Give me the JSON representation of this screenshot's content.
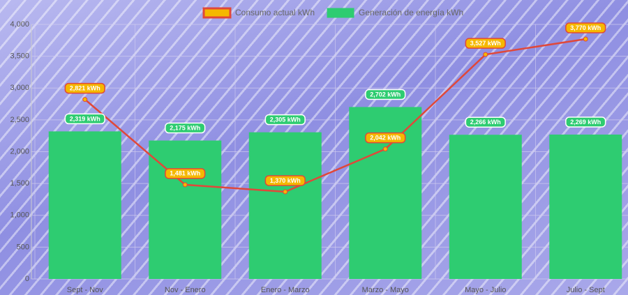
{
  "chart_data": {
    "type": "combo",
    "categories": [
      "Sept - Nov",
      "Nov - Enero",
      "Enero - Marzo",
      "Marzo - Mayo",
      "Mayo - Julio",
      "Julio - Sept"
    ],
    "series": [
      {
        "name": "Consumo actual kWh",
        "type": "line",
        "color": "#e0483a",
        "marker_color": "#f5b800",
        "values": [
          2821,
          1481,
          1370,
          2042,
          3527,
          3770
        ],
        "value_labels": [
          "2,821 kWh",
          "1,481 kWh",
          "1,370 kWh",
          "2,042 kWh",
          "3,527 kWh",
          "3,770 kWh"
        ]
      },
      {
        "name": "Generación de energía kWh",
        "type": "bar",
        "color": "#2ecc71",
        "values": [
          2319,
          2175,
          2305,
          2702,
          2266,
          2269
        ],
        "value_labels": [
          "2,319 kWh",
          "2,175 kWh",
          "2,305 kWh",
          "2,702 kWh",
          "2,266 kWh",
          "2,269 kWh"
        ]
      }
    ],
    "ylim": [
      0,
      4000
    ],
    "yticks": [
      0,
      500,
      {
        "value": 1000,
        "label": "1,000"
      },
      {
        "value": 1500,
        "label": "1,500"
      },
      {
        "value": 2000,
        "label": "2,000"
      },
      {
        "value": 2500,
        "label": "2,500"
      },
      {
        "value": 3000,
        "label": "3,000"
      },
      {
        "value": 3500,
        "label": "3,500"
      },
      {
        "value": 4000,
        "label": "4,000"
      }
    ],
    "grid": true,
    "legend": "top"
  }
}
